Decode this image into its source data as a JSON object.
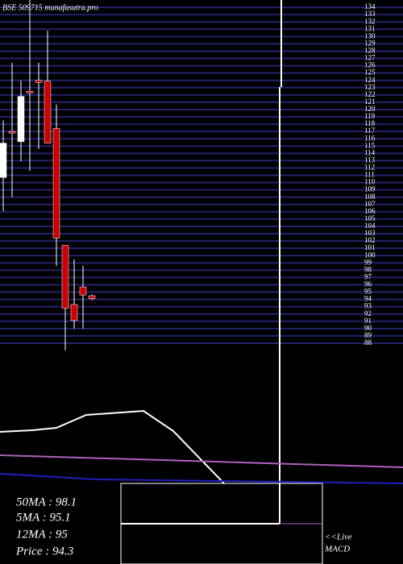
{
  "title": "BSE 509715 munafasutra.pro",
  "chart_data": [
    {
      "type": "candlestick",
      "open": [
        110.7,
        117.0,
        115.6,
        122.5,
        124.0,
        123.9,
        117.4,
        101.4,
        93.3,
        95.7,
        94.5
      ],
      "high": [
        118.5,
        126.4,
        124.0,
        135.0,
        126.4,
        130.8,
        120.7,
        101.4,
        99.5,
        98.6,
        94.7
      ],
      "low": [
        106.1,
        108.0,
        112.9,
        111.6,
        114.6,
        115.4,
        98.6,
        87.0,
        90.0,
        90.0,
        93.9
      ],
      "close": [
        115.4,
        116.8,
        121.8,
        122.3,
        123.7,
        115.4,
        102.4,
        92.8,
        91.1,
        94.6,
        94.1
      ],
      "up_color": "#ffffff",
      "down_color": "#cc0000",
      "ylim": [
        87,
        135
      ],
      "yticks": [
        88,
        89,
        90,
        91,
        92,
        93,
        94,
        95,
        96,
        97,
        98,
        99,
        100,
        101,
        102,
        103,
        104,
        105,
        106,
        107,
        108,
        109,
        110,
        111,
        112,
        113,
        114,
        115,
        116,
        117,
        118,
        119,
        120,
        121,
        122,
        123,
        124,
        125,
        126,
        127,
        128,
        129,
        130,
        131,
        132,
        133,
        134
      ],
      "grid": true,
      "grid_color": "#23236e"
    },
    {
      "type": "line",
      "xlim": [
        0,
        500
      ],
      "ylim": [
        0,
        100
      ],
      "series": [
        {
          "name": "MACD",
          "color": "#ffffff",
          "x": [
            0,
            40,
            70,
            107,
            178,
            215,
            278
          ],
          "values": [
            64,
            66,
            69,
            85,
            90,
            65,
            0
          ]
        },
        {
          "name": "50MA",
          "color": "#b060c0",
          "x": [
            0,
            500
          ],
          "values": [
            35,
            20
          ]
        },
        {
          "name": "12MA",
          "color": "#2020c0",
          "x": [
            0,
            120,
            500
          ],
          "values": [
            12,
            5,
            0
          ]
        }
      ]
    }
  ],
  "legend": [
    "50MA : 98.1",
    "5MA : 95.1",
    "12MA : 95",
    "Price   : 94.3"
  ],
  "live": "<<Live",
  "macd": "MACD"
}
